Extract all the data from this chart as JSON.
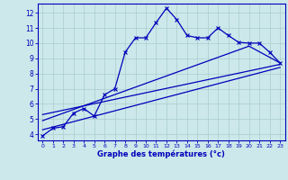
{
  "title": "",
  "xlabel": "Graphe des températures (°c)",
  "ylabel": "",
  "bg_color": "#cce8ea",
  "line_color": "#0000bb",
  "grid_color": "#aacccc",
  "x_ticks": [
    0,
    1,
    2,
    3,
    4,
    5,
    6,
    7,
    8,
    9,
    10,
    11,
    12,
    13,
    14,
    15,
    16,
    17,
    18,
    19,
    20,
    21,
    22,
    23
  ],
  "y_ticks": [
    4,
    5,
    6,
    7,
    8,
    9,
    10,
    11,
    12
  ],
  "ylim": [
    3.6,
    12.6
  ],
  "xlim": [
    -0.5,
    23.5
  ],
  "main_x": [
    0,
    1,
    2,
    3,
    4,
    5,
    6,
    7,
    8,
    9,
    10,
    11,
    12,
    13,
    14,
    15,
    16,
    17,
    18,
    19,
    20,
    21,
    22,
    23
  ],
  "main_y": [
    3.9,
    4.4,
    4.5,
    5.4,
    5.7,
    5.2,
    6.6,
    7.0,
    9.4,
    10.35,
    10.35,
    11.35,
    12.3,
    11.55,
    10.5,
    10.35,
    10.35,
    11.0,
    10.5,
    10.05,
    10.0,
    10.0,
    9.4,
    8.7
  ],
  "line2_x": [
    0,
    23
  ],
  "line2_y": [
    4.3,
    8.4
  ],
  "line3_x": [
    0,
    20,
    23
  ],
  "line3_y": [
    4.9,
    9.8,
    8.7
  ],
  "line4_x": [
    0,
    23
  ],
  "line4_y": [
    5.3,
    8.6
  ]
}
